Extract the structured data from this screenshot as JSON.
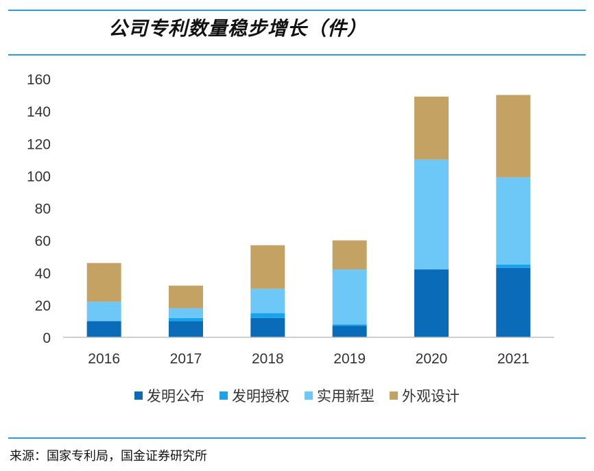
{
  "header": {
    "title": "公司专利数量稳步增长（件）"
  },
  "source": "来源：国家专利局，国金证券研究所",
  "chart_data": {
    "type": "bar",
    "stacked": true,
    "title": "公司专利数量稳步增长（件）",
    "xlabel": "",
    "ylabel": "",
    "ylim": [
      0,
      160
    ],
    "yticks": [
      0,
      20,
      40,
      60,
      80,
      100,
      120,
      140,
      160
    ],
    "categories": [
      "2016",
      "2017",
      "2018",
      "2019",
      "2020",
      "2021"
    ],
    "series": [
      {
        "name": "发明公布",
        "color": "#0a6bb8",
        "values": [
          10,
          10,
          12,
          7,
          42,
          43
        ]
      },
      {
        "name": "发明授权",
        "color": "#1aa3ec",
        "values": [
          0,
          2,
          3,
          1,
          0,
          2
        ]
      },
      {
        "name": "实用新型",
        "color": "#6ec8f7",
        "values": [
          12,
          6,
          15,
          34,
          68,
          54
        ]
      },
      {
        "name": "外观设计",
        "color": "#c3a263",
        "values": [
          24,
          14,
          27,
          18,
          39,
          51
        ]
      }
    ],
    "grid": false,
    "legend": "bottom"
  }
}
